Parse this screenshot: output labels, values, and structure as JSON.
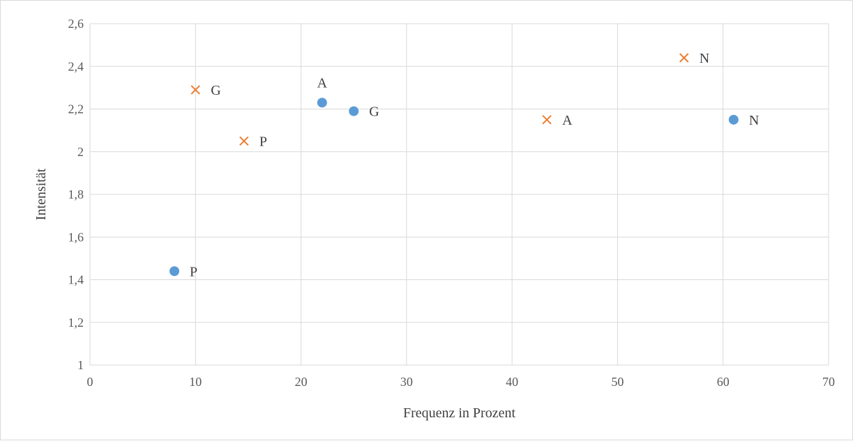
{
  "chart_data": {
    "type": "scatter",
    "title": "",
    "xlabel": "Frequenz in Prozent",
    "ylabel": "Intensität",
    "xlim": [
      0,
      70
    ],
    "ylim": [
      1,
      2.6
    ],
    "x_ticks": [
      0,
      10,
      20,
      30,
      40,
      50,
      60,
      70
    ],
    "y_ticks": [
      1,
      1.2,
      1.4,
      1.6,
      1.8,
      2,
      2.2,
      2.4,
      2.6
    ],
    "x_tick_labels": [
      "0",
      "10",
      "20",
      "30",
      "40",
      "50",
      "60",
      "70"
    ],
    "y_tick_labels": [
      "1",
      "1,2",
      "1,4",
      "1,6",
      "1,8",
      "2",
      "2,2",
      "2,4",
      "2,6"
    ],
    "grid": true,
    "legend": "none",
    "series": [
      {
        "marker": "circle",
        "color": "#5b9bd5",
        "points": [
          {
            "x": 8,
            "y": 1.44,
            "label": "P"
          },
          {
            "x": 22,
            "y": 2.23,
            "label": "A"
          },
          {
            "x": 25,
            "y": 2.19,
            "label": "G"
          },
          {
            "x": 61,
            "y": 2.15,
            "label": "N"
          }
        ]
      },
      {
        "marker": "x",
        "color": "#ed7d31",
        "points": [
          {
            "x": 10,
            "y": 2.29,
            "label": "G"
          },
          {
            "x": 14.6,
            "y": 2.05,
            "label": "P"
          },
          {
            "x": 43.3,
            "y": 2.15,
            "label": "A"
          },
          {
            "x": 56.3,
            "y": 2.44,
            "label": "N"
          }
        ]
      }
    ]
  }
}
